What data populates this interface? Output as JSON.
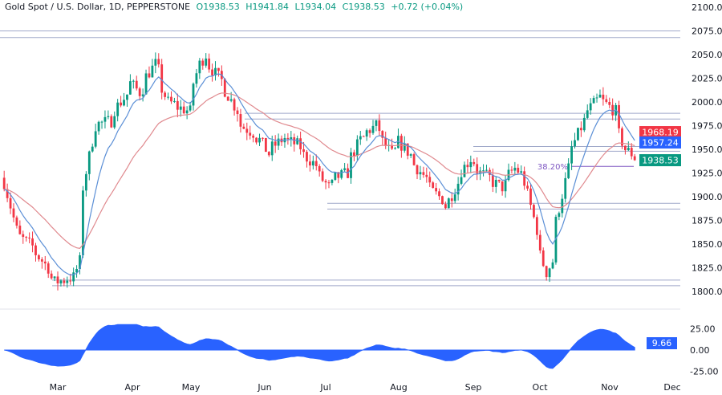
{
  "header": {
    "symbol": "Gold Spot / U.S. Dollar, 1D, PEPPERSTONE",
    "open": "O1938.53",
    "high": "H1941.84",
    "low": "L1934.04",
    "close": "C1938.53",
    "change": "+0.72 (+0.04%)"
  },
  "chart_data": [
    {
      "type": "candlestick",
      "title": "Gold Spot / U.S. Dollar, 1D, PEPPERSTONE",
      "ylim": [
        1790,
        2105
      ],
      "y_ticks": [
        "2100.00",
        "2075.00",
        "2050.00",
        "2025.00",
        "2000.00",
        "1975.00",
        "1950.00",
        "1925.00",
        "1900.00",
        "1875.00",
        "1850.00",
        "1825.00",
        "1800.00"
      ],
      "x_ticks": [
        "Mar",
        "Apr",
        "May",
        "Jun",
        "Jul",
        "Aug",
        "Sep",
        "Oct",
        "Nov",
        "Dec"
      ],
      "grid": false,
      "close_path": [
        [
          "2023-02-06",
          1915
        ],
        [
          "2023-02-10",
          1865
        ],
        [
          "2023-02-20",
          1840
        ],
        [
          "2023-02-28",
          1810
        ],
        [
          "2023-03-08",
          1815
        ],
        [
          "2023-03-10",
          1832
        ],
        [
          "2023-03-13",
          1910
        ],
        [
          "2023-03-17",
          1975
        ],
        [
          "2023-03-24",
          1980
        ],
        [
          "2023-04-03",
          2020
        ],
        [
          "2023-04-06",
          2010
        ],
        [
          "2023-04-13",
          2040
        ],
        [
          "2023-04-19",
          2000
        ],
        [
          "2023-04-28",
          1990
        ],
        [
          "2023-05-03",
          2040
        ],
        [
          "2023-05-05",
          2050
        ],
        [
          "2023-05-10",
          2030
        ],
        [
          "2023-05-15",
          2012
        ],
        [
          "2023-05-22",
          1975
        ],
        [
          "2023-05-30",
          1960
        ],
        [
          "2023-06-02",
          1945
        ],
        [
          "2023-06-09",
          1962
        ],
        [
          "2023-06-15",
          1955
        ],
        [
          "2023-06-23",
          1933
        ],
        [
          "2023-06-29",
          1910
        ],
        [
          "2023-07-03",
          1920
        ],
        [
          "2023-07-07",
          1925
        ],
        [
          "2023-07-13",
          1960
        ],
        [
          "2023-07-20",
          1975
        ],
        [
          "2023-07-27",
          1945
        ],
        [
          "2023-07-31",
          1958
        ],
        [
          "2023-08-08",
          1930
        ],
        [
          "2023-08-15",
          1905
        ],
        [
          "2023-08-21",
          1890
        ],
        [
          "2023-08-25",
          1915
        ],
        [
          "2023-08-31",
          1940
        ],
        [
          "2023-09-05",
          1925
        ],
        [
          "2023-09-14",
          1910
        ],
        [
          "2023-09-20",
          1930
        ],
        [
          "2023-09-25",
          1915
        ],
        [
          "2023-09-29",
          1865
        ],
        [
          "2023-10-04",
          1820
        ],
        [
          "2023-10-06",
          1832
        ],
        [
          "2023-10-13",
          1930
        ],
        [
          "2023-10-20",
          1980
        ],
        [
          "2023-10-27",
          2005
        ],
        [
          "2023-10-30",
          2000
        ],
        [
          "2023-11-03",
          1990
        ],
        [
          "2023-11-08",
          1950
        ],
        [
          "2023-11-13",
          1938.53
        ]
      ],
      "horizontal_levels": [
        2075,
        2068,
        1988,
        1982,
        1953,
        1948,
        1893,
        1887,
        1812,
        1806
      ],
      "fib_level": {
        "label": "38.20%",
        "price": 1932
      },
      "price_labels": [
        {
          "value": "1968.19",
          "color": "#f23645"
        },
        {
          "value": "1957.24",
          "color": "#2962ff"
        },
        {
          "value": "1938.53",
          "color": "#089981"
        }
      ],
      "series_colors": {
        "up": "#089981",
        "down": "#f23645",
        "fast_ma": "#5b8fd6",
        "slow_ma": "#e08a8f"
      }
    },
    {
      "type": "area",
      "ylim": [
        -35,
        35
      ],
      "y_ticks": [
        "25.00",
        "0.00",
        "-25.00"
      ],
      "last_value": "9.66",
      "color": "#2962ff"
    }
  ]
}
